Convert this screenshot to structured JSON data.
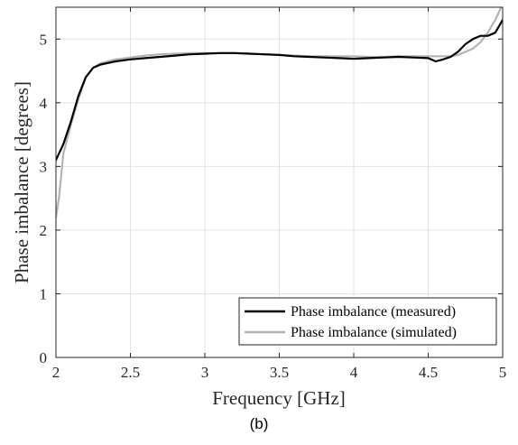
{
  "caption": "(b)",
  "chart_data": {
    "type": "line",
    "xlabel": "Frequency [GHz]",
    "ylabel": "Phase imbalance [degrees]",
    "xlim": [
      2,
      5
    ],
    "ylim": [
      0,
      5.5
    ],
    "xticks": [
      2,
      2.5,
      3,
      3.5,
      4,
      4.5,
      5
    ],
    "xtick_labels": [
      "2",
      "2.5",
      "3",
      "3.5",
      "4",
      "4.5",
      "5"
    ],
    "yticks": [
      0,
      1,
      2,
      3,
      4,
      5
    ],
    "ytick_labels": [
      "0",
      "1",
      "2",
      "3",
      "4",
      "5"
    ],
    "grid": true,
    "legend_position": "bottom-right",
    "series": [
      {
        "name": "Phase imbalance (measured)",
        "color": "#000000",
        "x": [
          2.0,
          2.05,
          2.1,
          2.15,
          2.2,
          2.25,
          2.3,
          2.4,
          2.5,
          2.6,
          2.7,
          2.8,
          2.9,
          3.0,
          3.1,
          3.2,
          3.3,
          3.4,
          3.5,
          3.6,
          3.7,
          3.8,
          3.9,
          4.0,
          4.1,
          4.2,
          4.3,
          4.4,
          4.5,
          4.55,
          4.6,
          4.65,
          4.7,
          4.75,
          4.8,
          4.85,
          4.9,
          4.95,
          5.0
        ],
        "y": [
          3.1,
          3.35,
          3.7,
          4.1,
          4.4,
          4.55,
          4.6,
          4.65,
          4.68,
          4.7,
          4.72,
          4.74,
          4.76,
          4.77,
          4.78,
          4.78,
          4.77,
          4.76,
          4.75,
          4.73,
          4.72,
          4.71,
          4.7,
          4.69,
          4.7,
          4.71,
          4.72,
          4.71,
          4.7,
          4.65,
          4.68,
          4.72,
          4.8,
          4.92,
          5.0,
          5.05,
          5.05,
          5.1,
          5.3
        ]
      },
      {
        "name": "Phase imbalance (simulated)",
        "color": "#b3b3b3",
        "x": [
          2.0,
          2.02,
          2.05,
          2.1,
          2.15,
          2.2,
          2.25,
          2.3,
          2.4,
          2.5,
          2.6,
          2.7,
          2.8,
          2.9,
          3.0,
          3.1,
          3.2,
          3.3,
          3.4,
          3.5,
          3.6,
          3.7,
          3.8,
          3.9,
          4.0,
          4.1,
          4.2,
          4.3,
          4.4,
          4.5,
          4.6,
          4.65,
          4.7,
          4.75,
          4.8,
          4.85,
          4.9,
          4.95,
          5.0
        ],
        "y": [
          2.2,
          2.5,
          3.2,
          3.65,
          4.05,
          4.4,
          4.55,
          4.62,
          4.68,
          4.71,
          4.74,
          4.76,
          4.77,
          4.78,
          4.78,
          4.78,
          4.78,
          4.77,
          4.76,
          4.75,
          4.74,
          4.73,
          4.73,
          4.73,
          4.73,
          4.72,
          4.72,
          4.73,
          4.73,
          4.73,
          4.73,
          4.73,
          4.75,
          4.8,
          4.85,
          4.95,
          5.1,
          5.3,
          5.55
        ]
      }
    ]
  }
}
